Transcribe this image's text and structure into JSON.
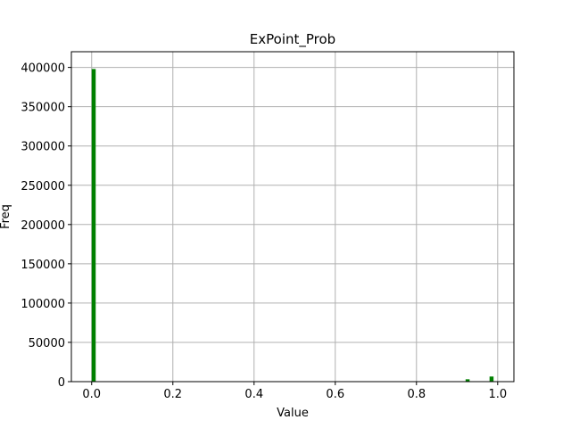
{
  "chart_data": {
    "type": "bar",
    "title": "ExPoint_Prob",
    "xlabel": "Value",
    "ylabel": "Freq",
    "xlim": [
      -0.05,
      1.04
    ],
    "ylim": [
      0,
      420000
    ],
    "grid": true,
    "bar_color": "#008000",
    "bin_width": 0.0099,
    "x_ticks": [
      0.0,
      0.2,
      0.4,
      0.6,
      0.8,
      1.0
    ],
    "x_tick_labels": [
      "0.0",
      "0.2",
      "0.4",
      "0.6",
      "0.8",
      "1.0"
    ],
    "y_ticks": [
      0,
      50000,
      100000,
      150000,
      200000,
      250000,
      300000,
      350000,
      400000
    ],
    "y_tick_labels": [
      "0",
      "50000",
      "100000",
      "150000",
      "200000",
      "250000",
      "300000",
      "350000",
      "400000"
    ],
    "bins": [
      {
        "x": 0.0,
        "value": 398000
      },
      {
        "x": 0.921,
        "value": 3000
      },
      {
        "x": 0.98,
        "value": 6500
      }
    ]
  }
}
